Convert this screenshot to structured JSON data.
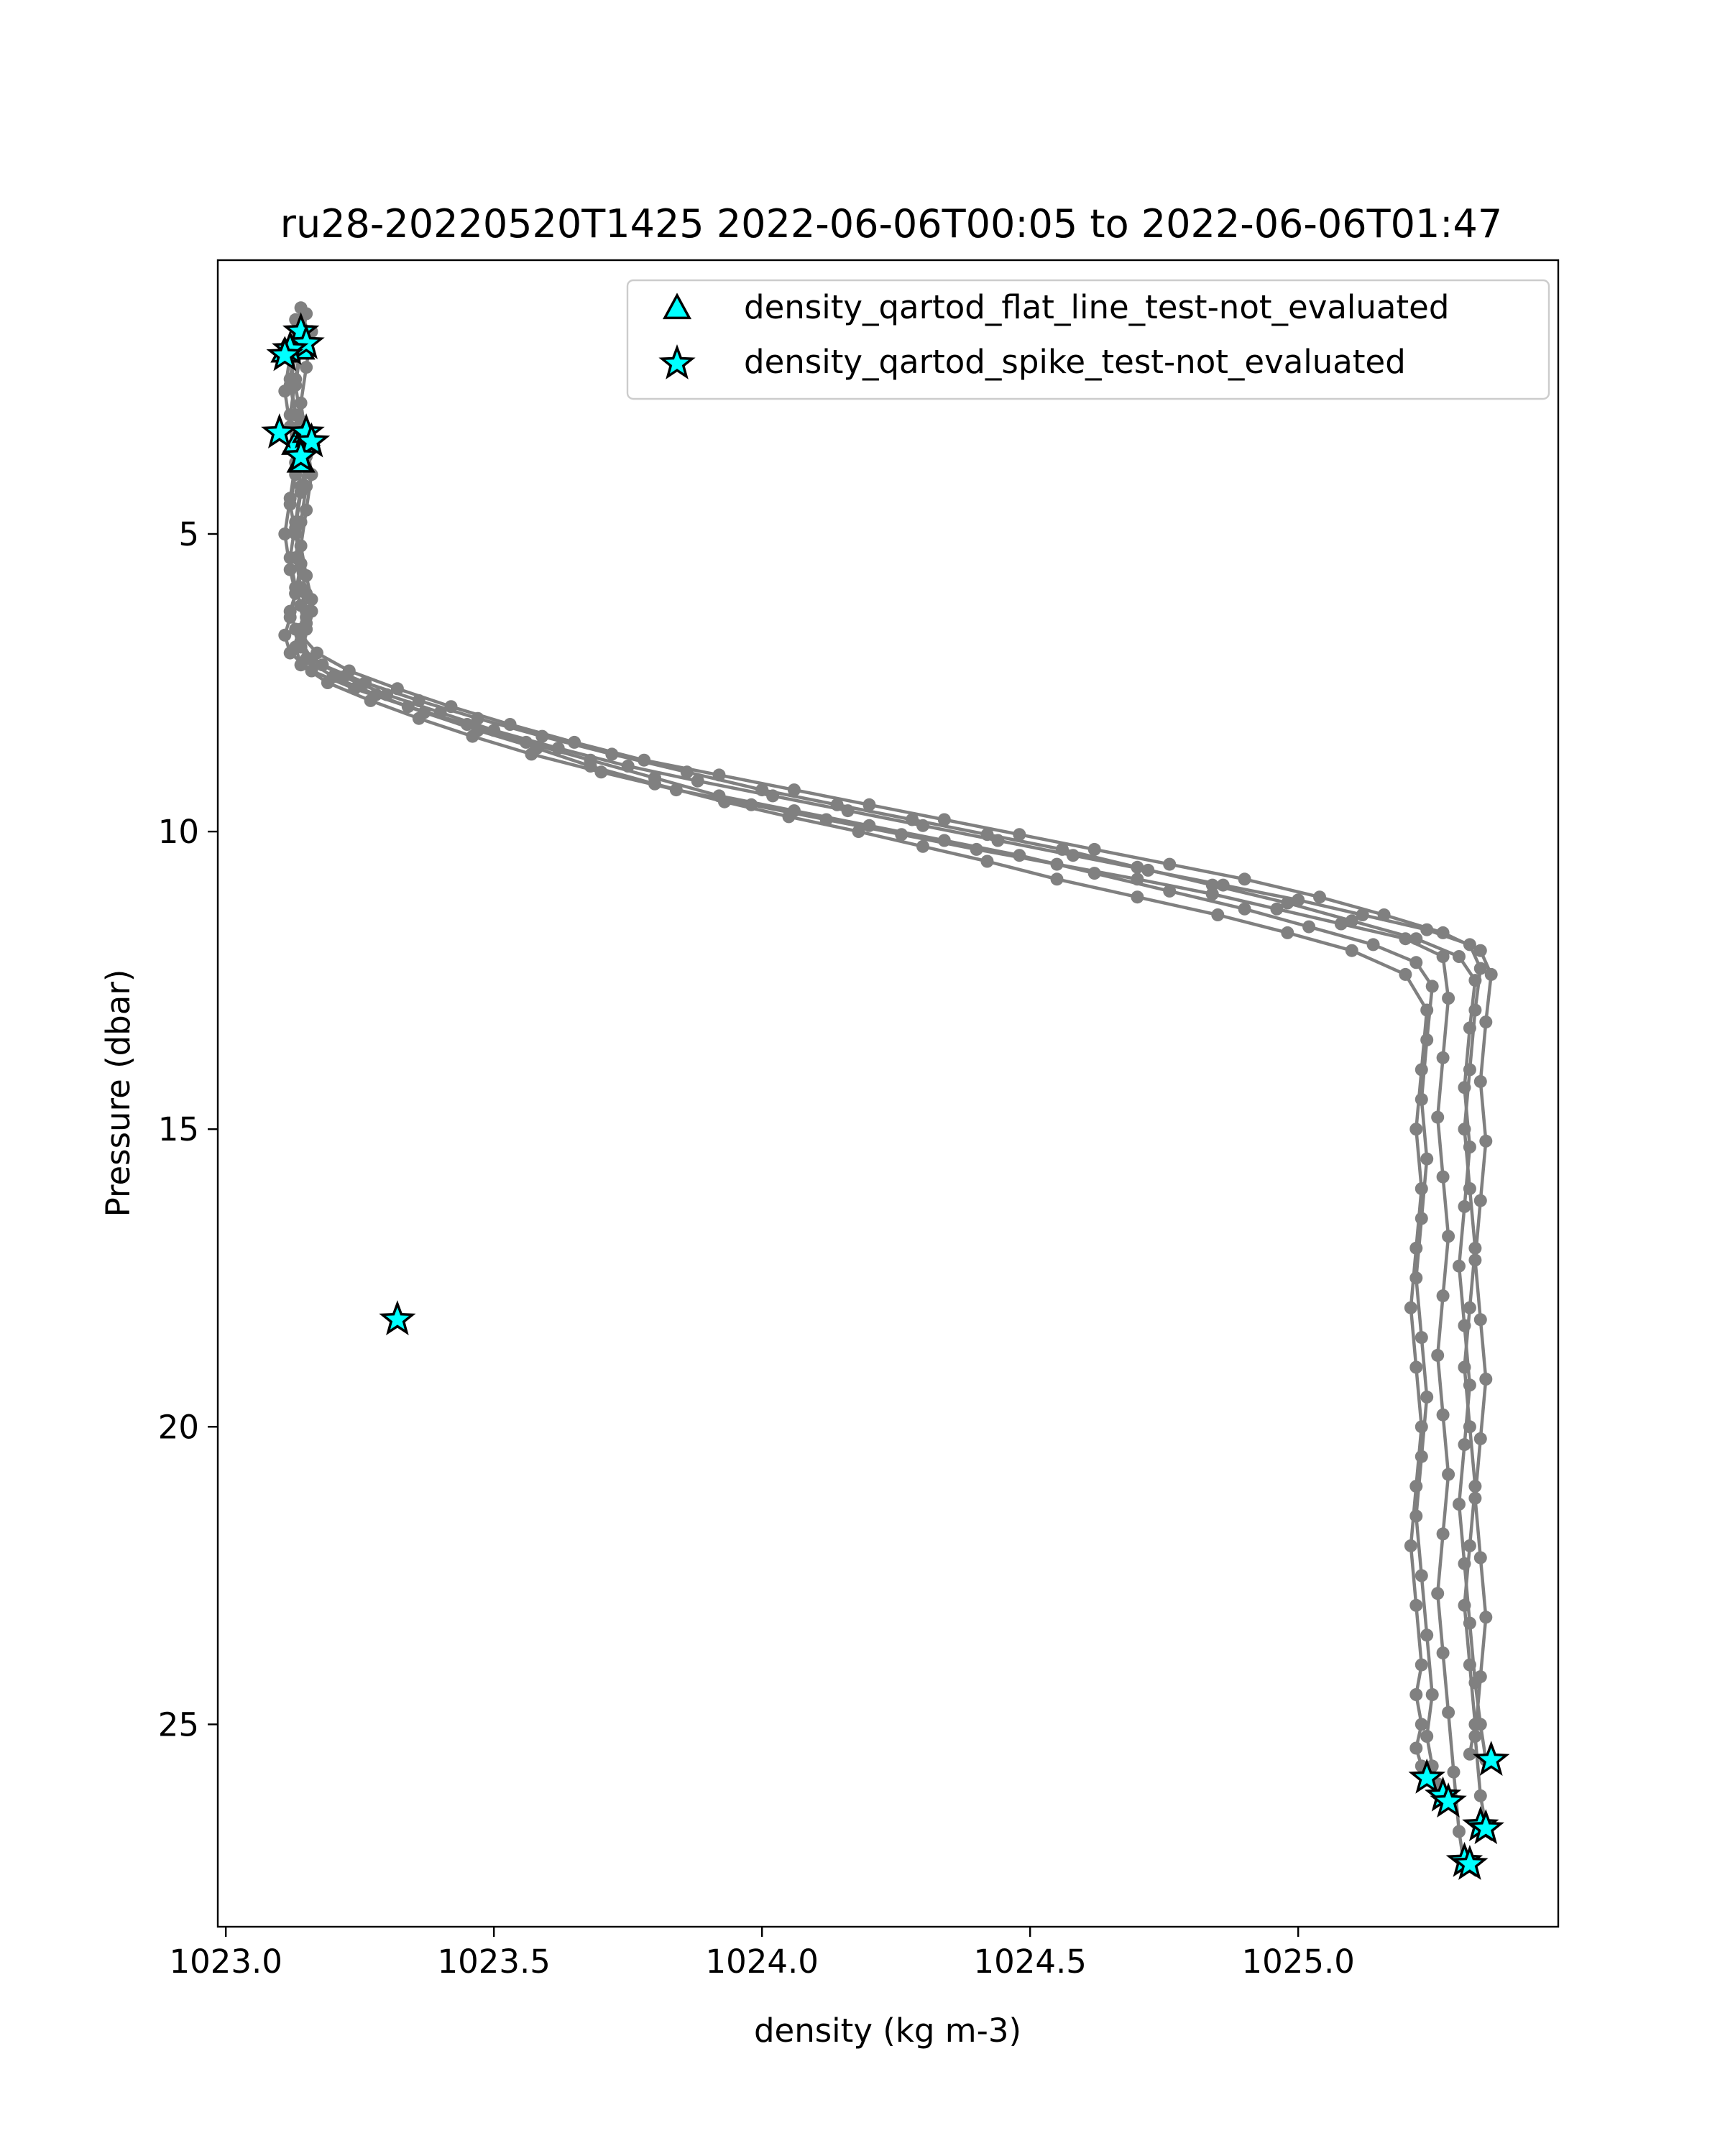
{
  "chart_data": {
    "type": "scatter",
    "title": "ru28-20220520T1425 2022-06-06T00:05 to 2022-06-06T01:47",
    "xlabel": "density (kg m-3)",
    "ylabel": "Pressure (dbar)",
    "xlim": [
      1022.985,
      1025.485
    ],
    "ylim": [
      28.4,
      0.4
    ],
    "y_inverted": true,
    "xticks": [
      {
        "value": 1023.0,
        "label": "1023.0"
      },
      {
        "value": 1023.5,
        "label": "1023.5"
      },
      {
        "value": 1024.0,
        "label": "1024.0"
      },
      {
        "value": 1024.5,
        "label": "1024.5"
      },
      {
        "value": 1025.0,
        "label": "1025.0"
      }
    ],
    "yticks": [
      {
        "value": 5,
        "label": "5"
      },
      {
        "value": 10,
        "label": "10"
      },
      {
        "value": 15,
        "label": "15"
      },
      {
        "value": 20,
        "label": "20"
      },
      {
        "value": 25,
        "label": "25"
      }
    ],
    "grid": false,
    "legend_position": "top-right",
    "profile_color": "#808080",
    "flag_color": "#00ffff",
    "profiles": [
      {
        "x": [
          1023.14,
          1023.13,
          1023.12,
          1023.13,
          1023.14,
          1023.13,
          1023.12,
          1023.13,
          1023.14,
          1023.13,
          1023.12,
          1023.13,
          1023.14,
          1023.15,
          1023.2,
          1023.28,
          1023.37,
          1023.47,
          1023.58,
          1023.68,
          1023.8,
          1023.93,
          1024.05,
          1024.18,
          1024.3,
          1024.42,
          1024.55,
          1024.7,
          1024.85,
          1024.98,
          1025.1,
          1025.2,
          1025.24,
          1025.23,
          1025.22,
          1025.23,
          1025.22,
          1025.21,
          1025.22,
          1025.23,
          1025.22,
          1025.21,
          1025.22,
          1025.23,
          1025.22,
          1025.23,
          1025.22,
          1025.23,
          1025.24
        ],
        "y": [
          1.5,
          2.0,
          2.5,
          3.0,
          3.5,
          4.0,
          4.5,
          5.0,
          5.5,
          6.0,
          6.3,
          6.6,
          6.9,
          7.1,
          7.4,
          7.7,
          8.0,
          8.3,
          8.6,
          8.9,
          9.2,
          9.5,
          9.75,
          10.0,
          10.25,
          10.5,
          10.8,
          11.1,
          11.4,
          11.7,
          12.0,
          12.4,
          13.0,
          14.0,
          15.0,
          16.0,
          17.0,
          18.0,
          19.0,
          20.0,
          21.0,
          22.0,
          23.0,
          24.0,
          24.5,
          25.0,
          25.4,
          25.7,
          25.9
        ]
      },
      {
        "x": [
          1023.13,
          1023.12,
          1023.11,
          1023.12,
          1023.13,
          1023.12,
          1023.11,
          1023.12,
          1023.13,
          1023.12,
          1023.11,
          1023.12,
          1023.16,
          1023.24,
          1023.34,
          1023.45,
          1023.56,
          1023.68,
          1023.8,
          1023.92,
          1024.06,
          1024.2,
          1024.34,
          1024.48,
          1024.62,
          1024.76,
          1024.9,
          1025.02,
          1025.14,
          1025.22,
          1025.25,
          1025.24,
          1025.23,
          1025.24,
          1025.23,
          1025.22,
          1025.23,
          1025.24,
          1025.23,
          1025.22,
          1025.23,
          1025.24,
          1025.25,
          1025.24,
          1025.25,
          1025.26,
          1025.27
        ],
        "y": [
          1.4,
          2.0,
          2.6,
          3.2,
          3.8,
          4.4,
          5.0,
          5.6,
          6.0,
          6.4,
          6.7,
          7.0,
          7.3,
          7.6,
          7.9,
          8.2,
          8.5,
          8.8,
          9.1,
          9.4,
          9.65,
          9.9,
          10.15,
          10.4,
          10.7,
          11.0,
          11.3,
          11.6,
          11.9,
          12.2,
          12.6,
          13.5,
          14.5,
          15.5,
          16.5,
          17.5,
          18.5,
          19.5,
          20.5,
          21.5,
          22.5,
          23.5,
          24.5,
          25.2,
          25.7,
          26.0,
          26.2
        ]
      },
      {
        "x": [
          1023.14,
          1023.13,
          1023.12,
          1023.13,
          1023.14,
          1023.15,
          1023.14,
          1023.13,
          1023.14,
          1023.15,
          1023.14,
          1023.13,
          1023.14,
          1023.19,
          1023.27,
          1023.36,
          1023.46,
          1023.57,
          1023.7,
          1023.84,
          1023.98,
          1024.12,
          1024.26,
          1024.4,
          1024.55,
          1024.7,
          1024.84,
          1024.96,
          1025.08,
          1025.2,
          1025.27,
          1025.28,
          1025.27,
          1025.26,
          1025.27,
          1025.28,
          1025.27,
          1025.26,
          1025.27,
          1025.28,
          1025.27,
          1025.26,
          1025.27,
          1025.28,
          1025.29,
          1025.3,
          1025.31
        ],
        "y": [
          1.2,
          1.8,
          2.4,
          3.0,
          3.6,
          4.2,
          4.8,
          5.4,
          5.9,
          6.3,
          6.6,
          6.9,
          7.2,
          7.5,
          7.8,
          8.1,
          8.4,
          8.7,
          9.0,
          9.3,
          9.55,
          9.8,
          10.05,
          10.3,
          10.55,
          10.8,
          11.05,
          11.3,
          11.55,
          11.8,
          12.1,
          12.8,
          13.8,
          14.8,
          15.8,
          16.8,
          17.8,
          18.8,
          19.8,
          20.8,
          21.8,
          22.8,
          23.8,
          24.8,
          25.8,
          26.8,
          27.4
        ]
      },
      {
        "x": [
          1023.15,
          1023.14,
          1023.13,
          1023.14,
          1023.15,
          1023.14,
          1023.13,
          1023.14,
          1023.15,
          1023.16,
          1023.15,
          1023.14,
          1023.18,
          1023.26,
          1023.36,
          1023.47,
          1023.59,
          1023.72,
          1023.86,
          1024.0,
          1024.14,
          1024.28,
          1024.42,
          1024.56,
          1024.7,
          1024.84,
          1024.98,
          1025.1,
          1025.22,
          1025.3,
          1025.33,
          1025.32,
          1025.31,
          1025.32,
          1025.31,
          1025.3,
          1025.31,
          1025.32,
          1025.31,
          1025.3,
          1025.31,
          1025.32,
          1025.33,
          1025.34,
          1025.35,
          1025.36
        ],
        "y": [
          1.3,
          1.9,
          2.5,
          3.1,
          3.7,
          4.3,
          4.9,
          5.5,
          6.0,
          6.3,
          6.6,
          6.9,
          7.2,
          7.5,
          7.8,
          8.1,
          8.4,
          8.7,
          9.0,
          9.3,
          9.55,
          9.8,
          10.05,
          10.3,
          10.6,
          10.9,
          11.2,
          11.5,
          11.8,
          12.1,
          12.5,
          13.3,
          14.3,
          15.3,
          16.3,
          17.3,
          18.3,
          19.3,
          20.3,
          21.3,
          22.3,
          23.3,
          24.3,
          25.0,
          25.6,
          25.6
        ]
      },
      {
        "x": [
          1023.16,
          1023.15,
          1023.14,
          1023.15,
          1023.16,
          1023.15,
          1023.14,
          1023.15,
          1023.16,
          1023.15,
          1023.14,
          1023.17,
          1023.23,
          1023.32,
          1023.42,
          1023.53,
          1023.65,
          1023.78,
          1023.92,
          1024.06,
          1024.2,
          1024.34,
          1024.48,
          1024.62,
          1024.76,
          1024.9,
          1025.04,
          1025.16,
          1025.27,
          1025.34,
          1025.36,
          1025.35,
          1025.34,
          1025.35,
          1025.34,
          1025.33,
          1025.34,
          1025.35,
          1025.34,
          1025.33,
          1025.34,
          1025.35,
          1025.34,
          1025.33,
          1025.34,
          1025.35
        ],
        "y": [
          1.6,
          2.2,
          2.8,
          3.4,
          4.0,
          4.6,
          5.2,
          5.7,
          6.1,
          6.4,
          6.7,
          7.0,
          7.3,
          7.6,
          7.9,
          8.2,
          8.5,
          8.8,
          9.05,
          9.3,
          9.55,
          9.8,
          10.05,
          10.3,
          10.55,
          10.8,
          11.1,
          11.4,
          11.7,
          12.0,
          12.4,
          13.2,
          14.2,
          15.2,
          16.2,
          17.2,
          18.2,
          19.2,
          20.2,
          21.2,
          22.2,
          23.2,
          24.2,
          25.2,
          26.2,
          26.7
        ]
      },
      {
        "x": [
          1023.14,
          1023.13,
          1023.12,
          1023.13,
          1023.14,
          1023.13,
          1023.12,
          1023.13,
          1023.14,
          1023.15,
          1023.14,
          1023.16,
          1023.22,
          1023.3,
          1023.4,
          1023.5,
          1023.62,
          1023.75,
          1023.88,
          1024.02,
          1024.16,
          1024.3,
          1024.44,
          1024.58,
          1024.72,
          1024.86,
          1025.0,
          1025.12,
          1025.24,
          1025.32,
          1025.34,
          1025.33,
          1025.32,
          1025.31,
          1025.32,
          1025.33,
          1025.32,
          1025.31,
          1025.32,
          1025.33,
          1025.32,
          1025.31,
          1025.32,
          1025.33,
          1025.32
        ],
        "y": [
          1.8,
          2.4,
          3.0,
          3.6,
          4.2,
          4.8,
          5.4,
          5.9,
          6.2,
          6.5,
          6.8,
          7.1,
          7.4,
          7.7,
          8.0,
          8.3,
          8.6,
          8.9,
          9.15,
          9.4,
          9.65,
          9.9,
          10.15,
          10.4,
          10.65,
          10.9,
          11.15,
          11.4,
          11.65,
          11.9,
          12.3,
          13.0,
          14.0,
          15.0,
          16.0,
          17.0,
          18.0,
          19.0,
          20.0,
          21.0,
          22.0,
          23.0,
          24.0,
          25.0,
          25.5
        ]
      }
    ],
    "series": [
      {
        "name": "density_qartod_flat_line_test-not_evaluated",
        "marker": "triangle",
        "x": [
          1023.14,
          1023.11,
          1023.15,
          1023.13,
          1023.14,
          1023.15
        ],
        "y": [
          1.9,
          1.95,
          3.35,
          3.5,
          3.8,
          3.3
        ]
      },
      {
        "name": "density_qartod_spike_test-not_evaluated",
        "marker": "star",
        "x": [
          1023.14,
          1023.15,
          1023.12,
          1023.11,
          1023.1,
          1023.15,
          1023.16,
          1023.14,
          1023.32,
          1025.36,
          1025.24,
          1025.27,
          1025.28,
          1025.34,
          1025.35,
          1025.31,
          1025.32
        ],
        "y": [
          1.6,
          1.8,
          1.9,
          2.0,
          3.3,
          3.3,
          3.45,
          3.7,
          18.2,
          25.6,
          25.9,
          26.2,
          26.3,
          26.7,
          26.75,
          27.3,
          27.35
        ]
      }
    ]
  }
}
